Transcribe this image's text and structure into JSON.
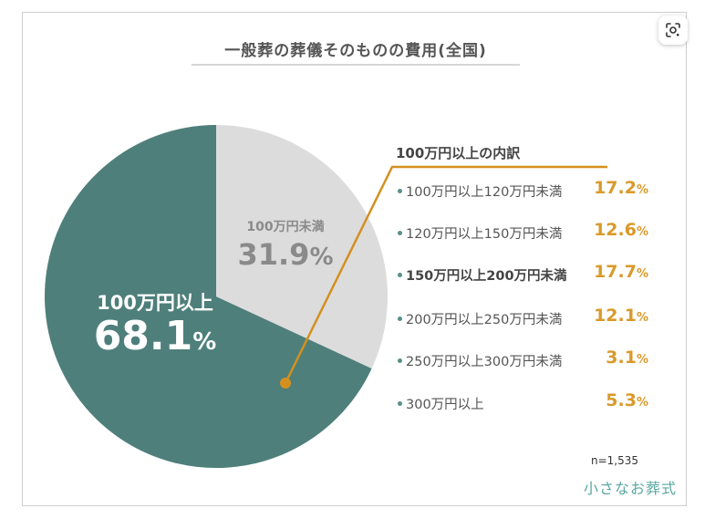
{
  "chart_data": {
    "type": "pie",
    "title": "一般葬の葬儀そのものの費用(全国)",
    "slices": [
      {
        "label": "100万円以上",
        "value": 68.1,
        "display": "68.1",
        "unit": "%",
        "color": "#4e7f7b"
      },
      {
        "label": "100万円未満",
        "value": 31.9,
        "display": "31.9",
        "unit": "%",
        "color": "#dcdcdc"
      }
    ],
    "start": "12 o'clock",
    "direction": "counter-clockwise",
    "callout_color": "#d4901f",
    "breakdown": {
      "title": "100万円以上の内訳",
      "items": [
        {
          "label": "100万円以上120万円未満",
          "value": 17.2,
          "display": "17.2",
          "unit": "%",
          "bold": false
        },
        {
          "label": "120万円以上150万円未満",
          "value": 12.6,
          "display": "12.6",
          "unit": "%",
          "bold": false
        },
        {
          "label": "150万円以上200万円未満",
          "value": 17.7,
          "display": "17.7",
          "unit": "%",
          "bold": true
        },
        {
          "label": "200万円以上250万円未満",
          "value": 12.1,
          "display": "12.1",
          "unit": "%",
          "bold": false
        },
        {
          "label": "250万円以上300万円未満",
          "value": 3.1,
          "display": "3.1",
          "unit": "%",
          "bold": false
        },
        {
          "label": "300万円以上",
          "value": 5.3,
          "display": "5.3",
          "unit": "%",
          "bold": false
        }
      ]
    },
    "sample_size": "n=1,535",
    "source_logo": "小さなお葬式"
  },
  "ui": {
    "lens_icon": "google-lens-icon"
  }
}
